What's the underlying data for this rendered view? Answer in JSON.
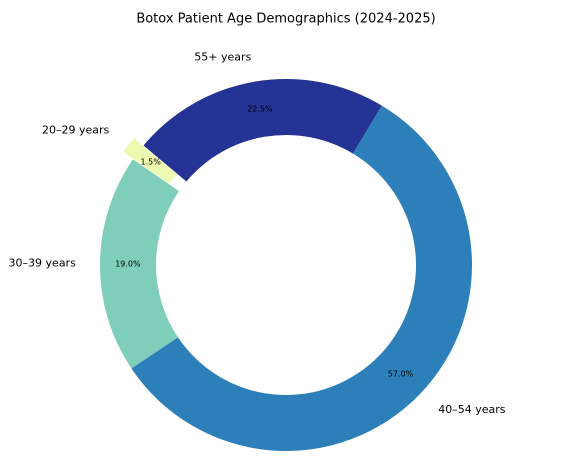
{
  "chart_data": {
    "type": "donut",
    "title": "Botox Patient Age Demographics (2024-2025)",
    "categories": [
      "20–29 years",
      "30–39 years",
      "40–54 years",
      "55+ years"
    ],
    "values": [
      1.5,
      19.0,
      57.0,
      22.5
    ],
    "value_labels": [
      "1.5%",
      "19.0%",
      "57.0%",
      "22.5%"
    ],
    "colors": [
      "#edf8b1",
      "#7fcdbb",
      "#2c7fb8",
      "#253494"
    ]
  }
}
